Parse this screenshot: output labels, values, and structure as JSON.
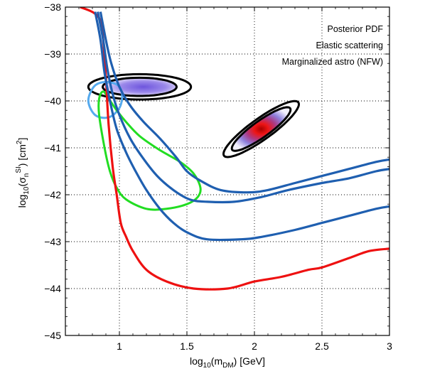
{
  "chart_data": {
    "type": "line",
    "title": "",
    "xlabel": "log10(mDM) [GeV]",
    "ylabel": "log10(σnSI) [cm²]",
    "xlim": [
      0.6,
      3.0
    ],
    "ylim": [
      -45,
      -38
    ],
    "x_ticks": [
      1,
      1.5,
      2,
      2.5,
      3
    ],
    "x_tick_labels": [
      "1",
      "1.5",
      "2",
      "2.5",
      "3"
    ],
    "y_ticks": [
      -45,
      -44,
      -43,
      -42,
      -41,
      -40,
      -39,
      -38
    ],
    "y_tick_labels": [
      "−45",
      "−44",
      "−43",
      "−42",
      "−41",
      "−40",
      "−39",
      "−38"
    ],
    "grid": true,
    "annotations": [
      "Posterior PDF",
      "Elastic scattering",
      "Marginalized astro (NFW)"
    ],
    "colors": {
      "red_curve": "#ee1111",
      "blue_curves": "#1f5fb0",
      "green_contour": "#22dd22",
      "light_blue_contour": "#55aaee",
      "posterior_outline": "#000000",
      "posterior_low": "#7766dd",
      "posterior_high": "#dd1111"
    },
    "series": [
      {
        "color": "red",
        "points": [
          [
            0.71,
            -38.0
          ],
          [
            0.81,
            -38.12
          ],
          [
            0.86,
            -38.3
          ],
          [
            0.88,
            -38.7
          ],
          [
            0.9,
            -39.5
          ],
          [
            0.92,
            -40.5
          ],
          [
            0.95,
            -41.4
          ],
          [
            0.98,
            -42.0
          ],
          [
            1.01,
            -42.6
          ],
          [
            1.05,
            -42.9
          ],
          [
            1.1,
            -43.2
          ],
          [
            1.2,
            -43.6
          ],
          [
            1.35,
            -43.85
          ],
          [
            1.55,
            -44.0
          ],
          [
            1.8,
            -44.0
          ],
          [
            2.0,
            -43.85
          ],
          [
            2.2,
            -43.75
          ],
          [
            2.4,
            -43.6
          ],
          [
            2.5,
            -43.55
          ],
          [
            2.7,
            -43.35
          ],
          [
            2.85,
            -43.2
          ],
          [
            3.0,
            -43.15
          ]
        ]
      },
      {
        "color": "blue",
        "points": [
          [
            0.82,
            -38.1
          ],
          [
            0.86,
            -38.7
          ],
          [
            0.89,
            -39.4
          ],
          [
            0.93,
            -40.0
          ],
          [
            0.98,
            -40.6
          ],
          [
            1.05,
            -41.1
          ],
          [
            1.12,
            -41.5
          ],
          [
            1.2,
            -41.9
          ],
          [
            1.3,
            -42.3
          ],
          [
            1.4,
            -42.6
          ],
          [
            1.5,
            -42.8
          ],
          [
            1.65,
            -42.95
          ],
          [
            1.9,
            -42.95
          ],
          [
            2.05,
            -42.9
          ],
          [
            2.3,
            -42.75
          ],
          [
            2.5,
            -42.6
          ],
          [
            2.7,
            -42.45
          ],
          [
            2.9,
            -42.3
          ],
          [
            3.0,
            -42.25
          ]
        ]
      },
      {
        "color": "blue",
        "points": [
          [
            0.86,
            -38.1
          ],
          [
            0.9,
            -38.7
          ],
          [
            0.94,
            -39.2
          ],
          [
            1.0,
            -39.7
          ],
          [
            1.08,
            -40.1
          ],
          [
            1.18,
            -40.45
          ],
          [
            1.3,
            -40.8
          ],
          [
            1.42,
            -41.2
          ],
          [
            1.5,
            -41.5
          ],
          [
            1.6,
            -41.7
          ],
          [
            1.75,
            -41.9
          ],
          [
            1.95,
            -41.95
          ],
          [
            2.1,
            -41.9
          ],
          [
            2.3,
            -41.75
          ],
          [
            2.5,
            -41.6
          ],
          [
            2.7,
            -41.45
          ],
          [
            2.9,
            -41.3
          ],
          [
            3.0,
            -41.25
          ]
        ]
      },
      {
        "color": "blue",
        "points": [
          [
            0.84,
            -38.1
          ],
          [
            0.88,
            -38.7
          ],
          [
            0.91,
            -39.3
          ],
          [
            0.95,
            -39.85
          ],
          [
            1.0,
            -40.3
          ],
          [
            1.08,
            -40.8
          ],
          [
            1.17,
            -41.2
          ],
          [
            1.28,
            -41.6
          ],
          [
            1.4,
            -41.9
          ],
          [
            1.52,
            -42.1
          ],
          [
            1.65,
            -42.15
          ],
          [
            1.85,
            -42.15
          ],
          [
            2.05,
            -42.05
          ],
          [
            2.25,
            -41.9
          ],
          [
            2.5,
            -41.75
          ],
          [
            2.7,
            -41.65
          ],
          [
            2.9,
            -41.5
          ],
          [
            3.0,
            -41.45
          ]
        ]
      }
    ],
    "green_contour": [
      [
        0.88,
        -39.8
      ],
      [
        0.92,
        -39.95
      ],
      [
        0.98,
        -40.2
      ],
      [
        1.05,
        -40.45
      ],
      [
        1.15,
        -40.75
      ],
      [
        1.3,
        -41.05
      ],
      [
        1.45,
        -41.3
      ],
      [
        1.55,
        -41.55
      ],
      [
        1.6,
        -41.85
      ],
      [
        1.58,
        -42.05
      ],
      [
        1.5,
        -42.2
      ],
      [
        1.35,
        -42.3
      ],
      [
        1.2,
        -42.3
      ],
      [
        1.05,
        -42.1
      ],
      [
        0.98,
        -41.85
      ],
      [
        0.93,
        -41.5
      ],
      [
        0.89,
        -41.0
      ],
      [
        0.85,
        -40.3
      ],
      [
        0.85,
        -39.95
      ]
    ],
    "light_blue_contour": [
      [
        0.88,
        -39.6
      ],
      [
        0.98,
        -39.65
      ],
      [
        1.02,
        -39.85
      ],
      [
        1.0,
        -40.15
      ],
      [
        0.92,
        -40.35
      ],
      [
        0.82,
        -40.3
      ],
      [
        0.77,
        -40.0
      ],
      [
        0.81,
        -39.7
      ]
    ],
    "posterior_blob_low_mass": {
      "center": [
        1.15,
        -39.7
      ],
      "x_halfwidth": 0.38,
      "y_halfwidth": 0.27
    },
    "posterior_blob_high_mass": {
      "center": [
        2.05,
        -40.6
      ],
      "x_halfwidth": 0.45,
      "y_halfwidth": 0.78,
      "tilt_slope": 1.9
    }
  }
}
